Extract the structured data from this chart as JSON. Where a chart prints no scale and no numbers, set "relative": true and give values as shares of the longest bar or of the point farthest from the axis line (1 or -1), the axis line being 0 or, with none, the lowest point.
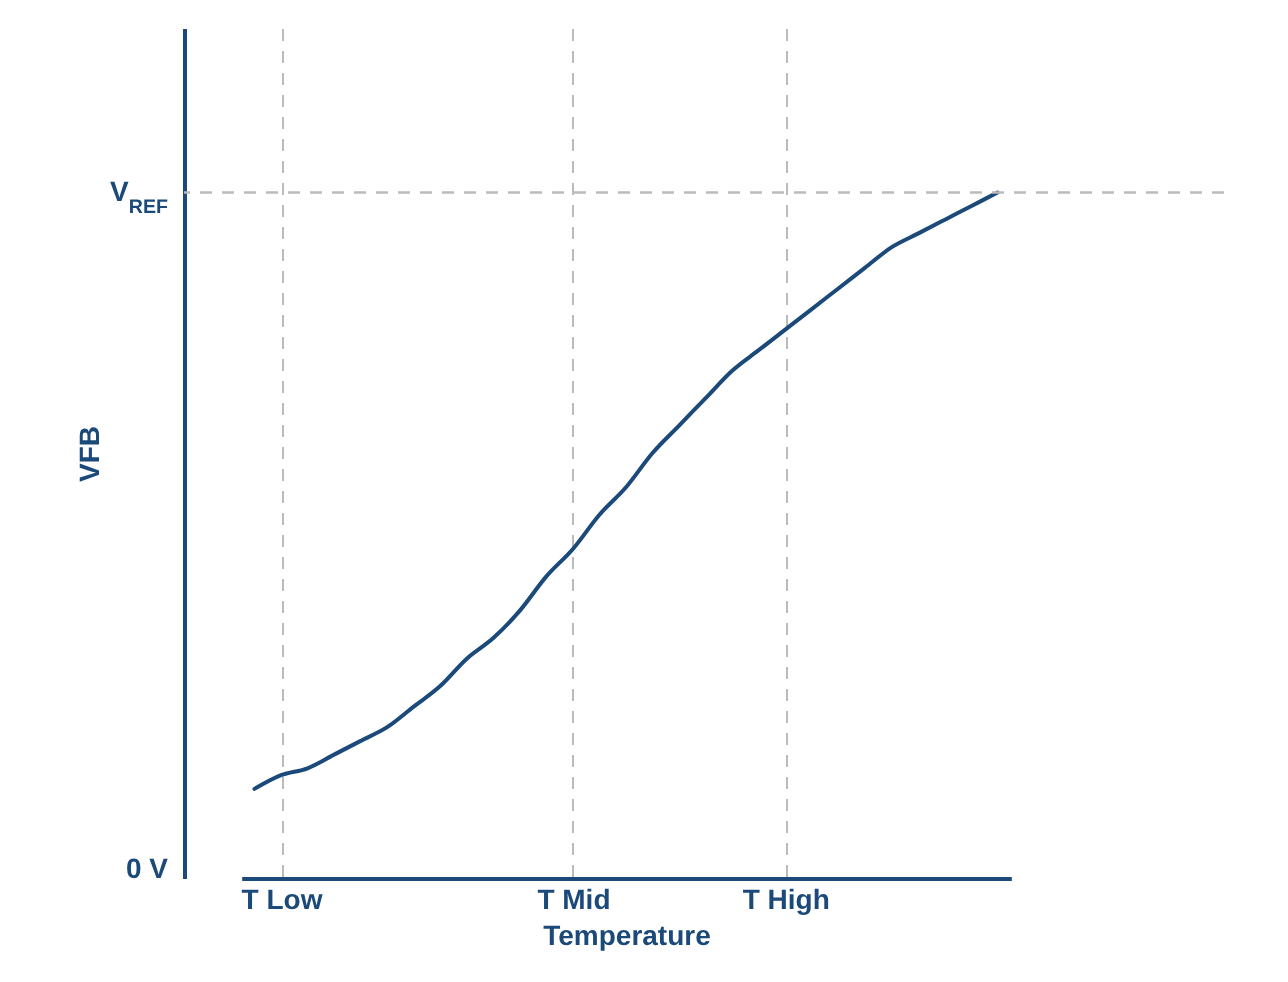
{
  "chart_data": {
    "type": "line",
    "xlabel": "Temperature",
    "ylabel": "VFB",
    "relative": true,
    "categories": [
      null,
      "T Low",
      null,
      null,
      null,
      null,
      null,
      null,
      null,
      null,
      null,
      null,
      "T Mid",
      null,
      null,
      null,
      null,
      null,
      null,
      null,
      "T High",
      null,
      null,
      null,
      null,
      null,
      null,
      null,
      null
    ],
    "series": [
      {
        "color": "#1b4a7a",
        "values": [
          0.13,
          0.15,
          0.16,
          0.18,
          0.2,
          0.22,
          0.25,
          0.28,
          0.32,
          0.35,
          0.39,
          0.44,
          0.48,
          0.53,
          0.57,
          0.62,
          0.66,
          0.7,
          0.74,
          0.77,
          0.8,
          0.83,
          0.86,
          0.89,
          0.92,
          0.94,
          0.96,
          0.98,
          1.0
        ]
      }
    ],
    "annotations": [
      "0 V"
    ],
    "ref_lines": [
      {
        "axis": "y",
        "value": 1,
        "label": "V$_{REF}$",
        "color": "#bbbbbb",
        "line_style": "dashed"
      }
    ],
    "grid": "x",
    "line_style": "solid",
    "marker": "none"
  }
}
